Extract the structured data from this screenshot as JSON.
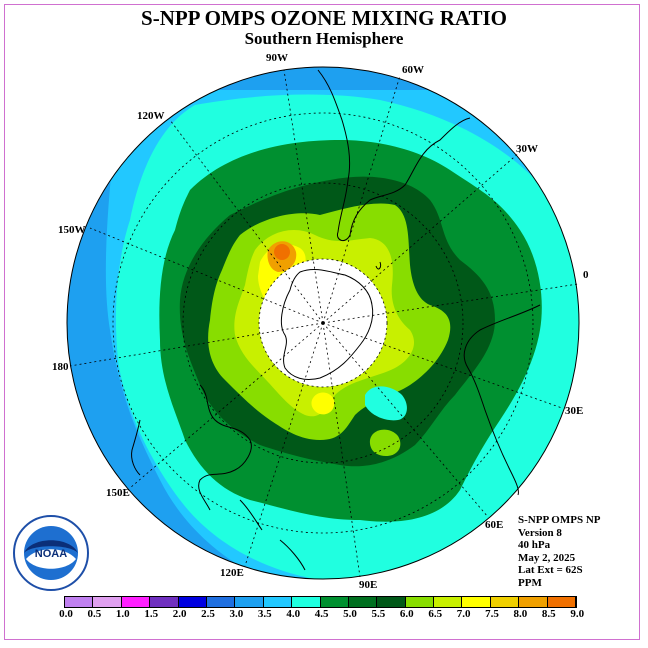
{
  "title": "S-NPP OMPS OZONE MIXING RATIO",
  "subtitle": "Southern Hemisphere",
  "lon_labels": {
    "w90": "90W",
    "w60": "60W",
    "w30": "30W",
    "e0": "0",
    "w120": "120W",
    "w150": "150W",
    "d180": "180",
    "e30": "30E",
    "e60": "60E",
    "e90": "90E",
    "e120": "120E",
    "e150": "150E"
  },
  "info": {
    "line1": "S-NPP OMPS NP",
    "line2": "Version 8",
    "line3": "40 hPa",
    "line4": "May 2, 2025",
    "line5": "Lat Ext = 62S",
    "line6": "PPM"
  },
  "logo_text": "NOAA",
  "colorbar": {
    "colors": [
      "#c080f0",
      "#e0a0f0",
      "#ff20ff",
      "#7030c0",
      "#0000e0",
      "#1f6fe0",
      "#1ea0f0",
      "#22c8ff",
      "#20ffe0",
      "#009030",
      "#007020",
      "#005818",
      "#88dd00",
      "#c8f000",
      "#ffff00",
      "#f0d000",
      "#f0a000",
      "#f07000",
      "#ff0000",
      "#d00000",
      "#8b5a3c"
    ],
    "ticks": [
      "0.0",
      "0.5",
      "1.0",
      "1.5",
      "2.0",
      "2.5",
      "3.0",
      "3.5",
      "4.0",
      "4.5",
      "5.0",
      "5.5",
      "6.0",
      "6.5",
      "7.0",
      "7.5",
      "8.0",
      "8.5",
      "9.0"
    ]
  },
  "field_colors": {
    "outer": "#1ea0f0",
    "light_blue": "#22c8ff",
    "cyan": "#20ffe0",
    "green": "#009030",
    "dark_green": "#005818",
    "lime": "#88dd00",
    "yellow_green": "#c8f000",
    "yellow": "#ffff00",
    "orange": "#f0a000",
    "no_data": "#ffffff"
  }
}
